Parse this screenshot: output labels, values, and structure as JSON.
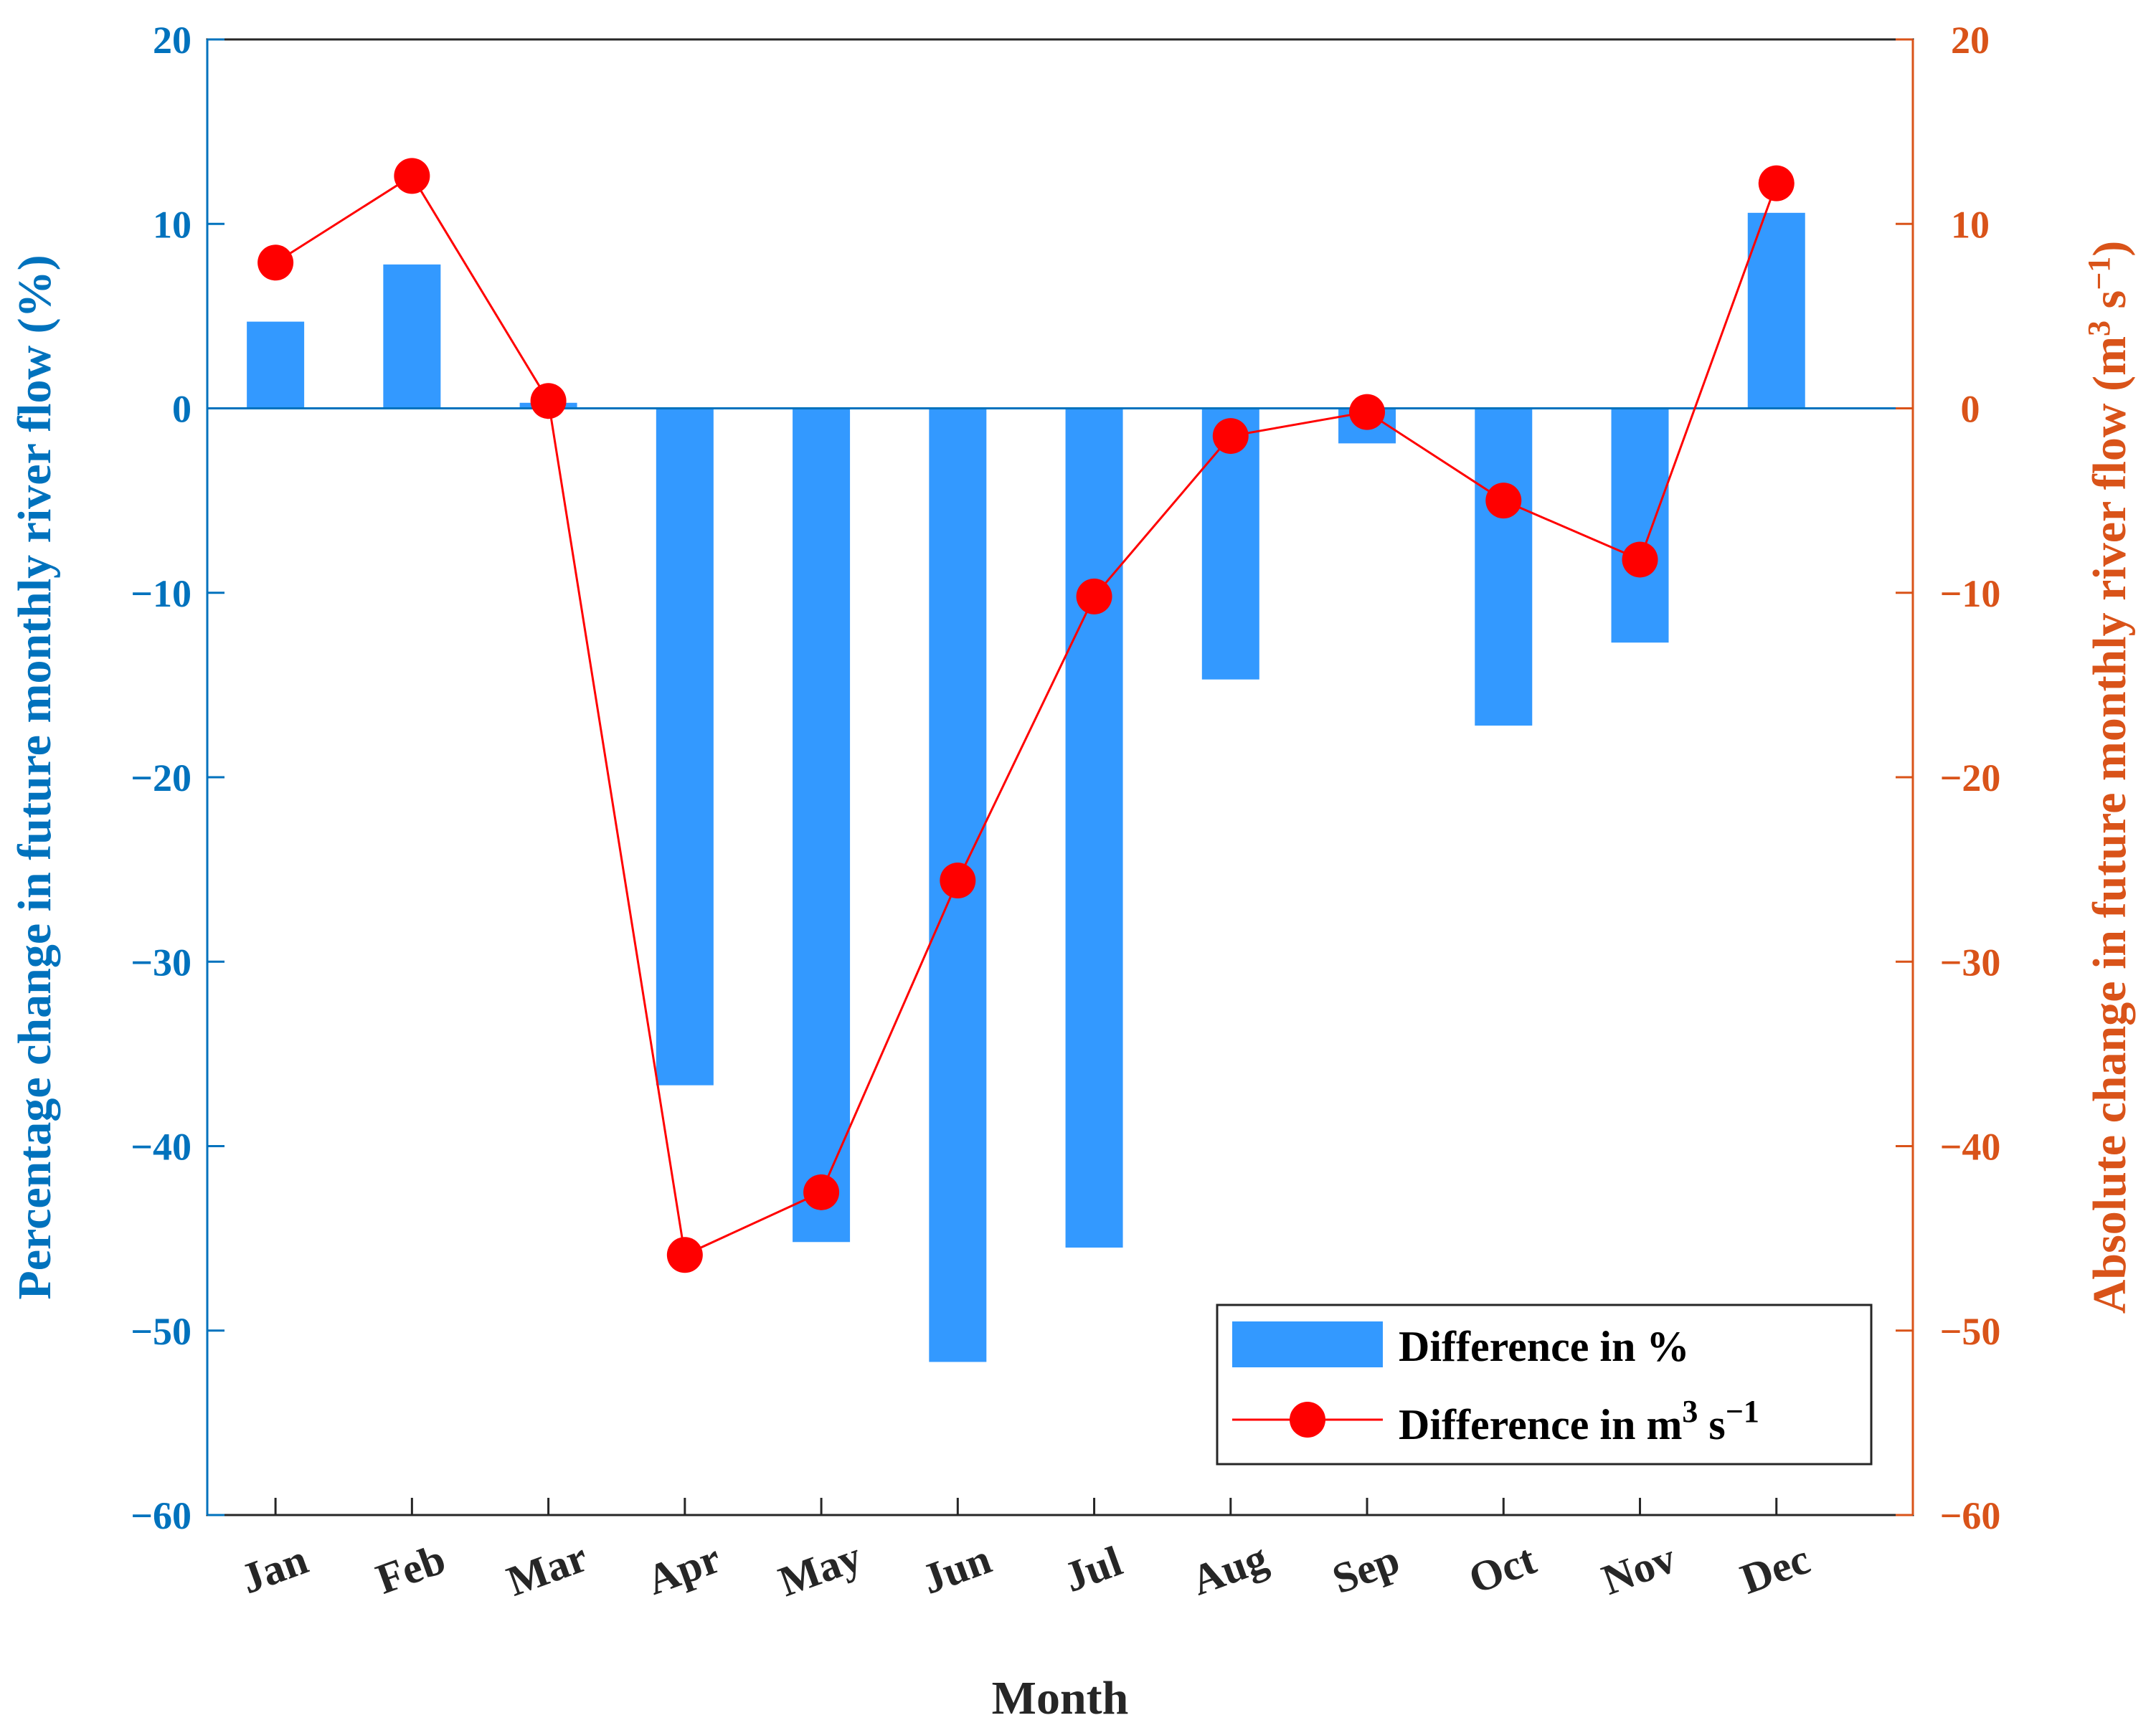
{
  "chart_data": {
    "type": "bar+line",
    "categories": [
      "Jan",
      "Feb",
      "Mar",
      "Apr",
      "May",
      "Jun",
      "Jul",
      "Aug",
      "Sep",
      "Oct",
      "Nov",
      "Dec"
    ],
    "xlabel": "Month",
    "y_left": {
      "label": "Percentage change in future monthly river flow (%)",
      "lim": [
        -60,
        20
      ],
      "ticks": [
        -60,
        -50,
        -40,
        -30,
        -20,
        -10,
        0,
        10,
        20
      ],
      "color": "#0072bd"
    },
    "y_right": {
      "label": "Absolute change in future monthly river flow (m",
      "label_sup1": "3",
      "label_mid": " s",
      "label_sup2": "−1",
      "label_end": ")",
      "lim": [
        -60,
        20
      ],
      "ticks": [
        -60,
        -50,
        -40,
        -30,
        -20,
        -10,
        0,
        10,
        20
      ],
      "color": "#d95319"
    },
    "series": [
      {
        "name": "Difference in %",
        "type": "bar",
        "axis": "left",
        "color": "#3399ff",
        "values": [
          4.7,
          7.8,
          0.3,
          -36.7,
          -45.2,
          -51.7,
          -45.5,
          -14.7,
          -1.9,
          -17.2,
          -12.7,
          10.6
        ]
      },
      {
        "name": "Difference in m",
        "name_sup1": "3",
        "name_mid": " s",
        "name_sup2": "−1",
        "type": "line",
        "axis": "right",
        "color": "#ff0000",
        "marker": "circle",
        "values": [
          7.9,
          12.6,
          0.4,
          -45.9,
          -42.5,
          -25.6,
          -10.2,
          -1.5,
          -0.2,
          -5.0,
          -8.2,
          12.2
        ]
      }
    ]
  }
}
